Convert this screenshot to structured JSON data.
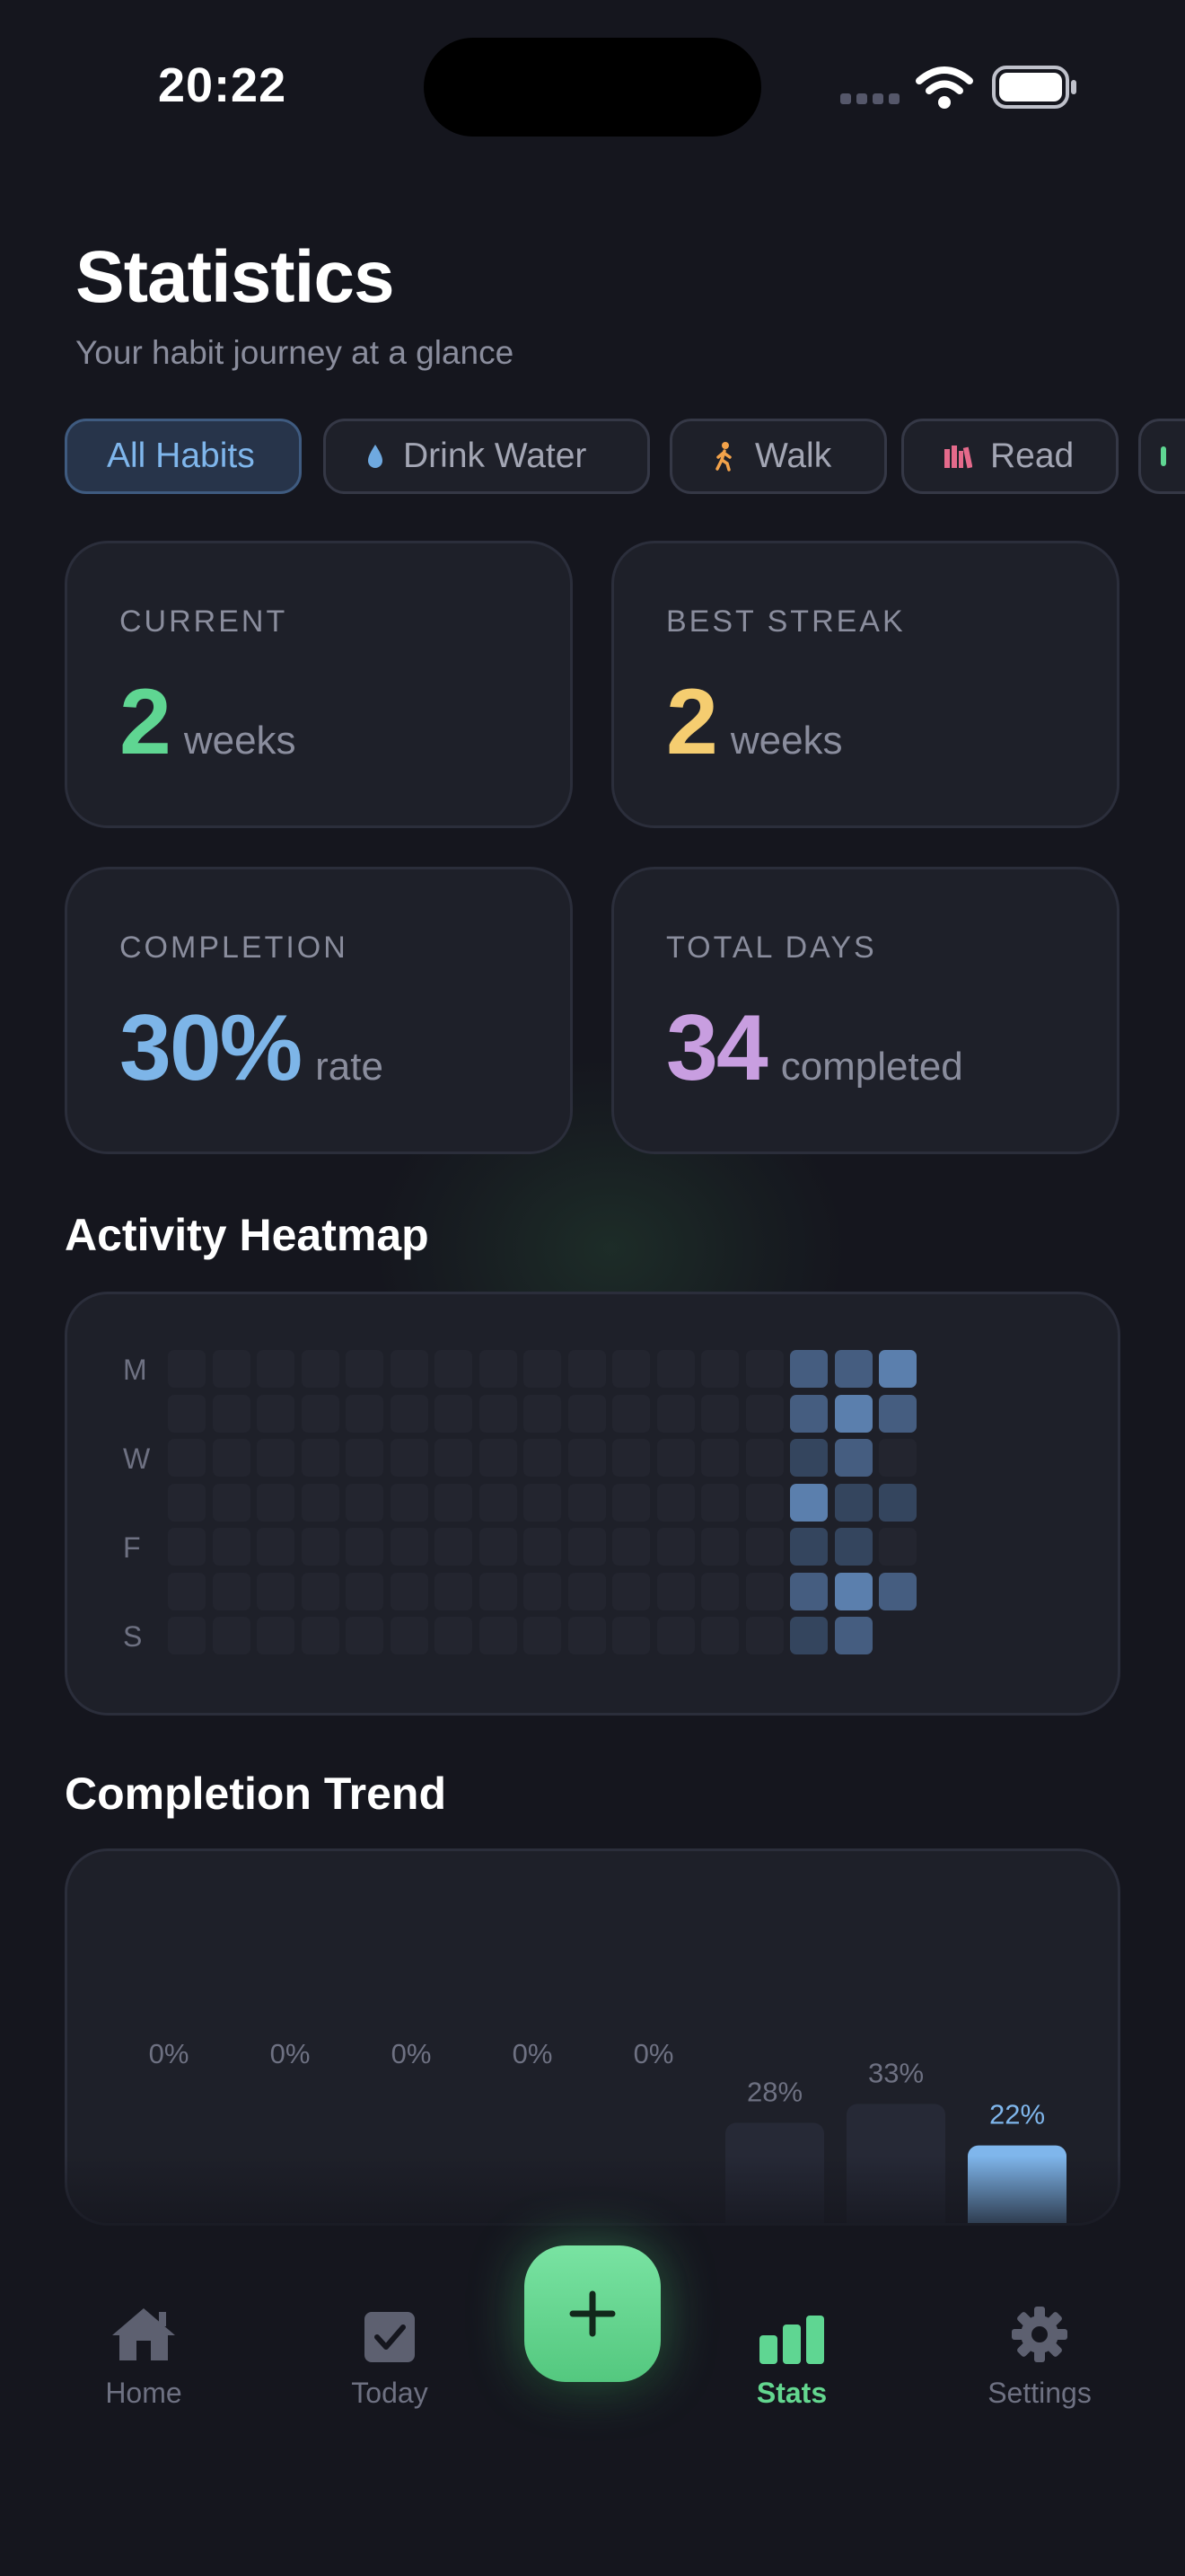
{
  "status_bar": {
    "time": "20:22",
    "wifi_icon": "wifi-icon",
    "battery_icon": "battery-icon"
  },
  "header": {
    "title": "Statistics",
    "subtitle": "Your habit journey at a glance"
  },
  "filters": [
    {
      "label": "All Habits",
      "icon": "",
      "active": true
    },
    {
      "label": "Drink Water",
      "icon": "water-drop-icon",
      "active": false
    },
    {
      "label": "Walk",
      "icon": "walking-icon",
      "active": false
    },
    {
      "label": "Read",
      "icon": "books-icon",
      "active": false
    }
  ],
  "stats": {
    "current": {
      "label": "CURRENT",
      "value": "2",
      "unit": "weeks",
      "color": "#5fd692"
    },
    "best_streak": {
      "label": "BEST STREAK",
      "value": "2",
      "unit": "weeks",
      "color": "#f5cd70"
    },
    "completion": {
      "label": "COMPLETION",
      "value": "30%",
      "unit": "rate",
      "color": "#7db5e8"
    },
    "total_days": {
      "label": "TOTAL DAYS",
      "value": "34",
      "unit": "completed",
      "color": "#c89ee0"
    }
  },
  "heatmap": {
    "title": "Activity Heatmap",
    "day_labels": [
      "M",
      "",
      "W",
      "",
      "F",
      "",
      "S"
    ],
    "levels": [
      [
        0,
        0,
        0,
        0,
        0,
        0,
        0,
        0,
        0,
        0,
        0,
        0,
        0,
        0,
        2,
        2,
        3
      ],
      [
        0,
        0,
        0,
        0,
        0,
        0,
        0,
        0,
        0,
        0,
        0,
        0,
        0,
        0,
        2,
        3,
        2
      ],
      [
        0,
        0,
        0,
        0,
        0,
        0,
        0,
        0,
        0,
        0,
        0,
        0,
        0,
        0,
        1,
        2,
        0
      ],
      [
        0,
        0,
        0,
        0,
        0,
        0,
        0,
        0,
        0,
        0,
        0,
        0,
        0,
        0,
        3,
        1,
        1
      ],
      [
        0,
        0,
        0,
        0,
        0,
        0,
        0,
        0,
        0,
        0,
        0,
        0,
        0,
        0,
        1,
        1,
        0
      ],
      [
        0,
        0,
        0,
        0,
        0,
        0,
        0,
        0,
        0,
        0,
        0,
        0,
        0,
        0,
        2,
        3,
        2
      ],
      [
        0,
        0,
        0,
        0,
        0,
        0,
        0,
        0,
        0,
        0,
        0,
        0,
        0,
        0,
        1,
        2,
        -1
      ]
    ],
    "colors": {
      "-1": "transparent",
      "0": "#23252f",
      "1": "#34455e",
      "2": "#455d80",
      "3": "#5b7fad"
    }
  },
  "trend": {
    "title": "Completion Trend",
    "bar_color": "#262936",
    "highlight_color": "#7fb6ec"
  },
  "chart_data": {
    "type": "bar",
    "categories": [
      "",
      "",
      "",
      "",
      "",
      "",
      "",
      ""
    ],
    "values": [
      0,
      0,
      0,
      0,
      0,
      28,
      33,
      22
    ],
    "value_labels": [
      "0%",
      "0%",
      "0%",
      "0%",
      "0%",
      "28%",
      "33%",
      "22%"
    ],
    "highlight_index": 7,
    "ylim": [
      0,
      100
    ],
    "grid": false,
    "legend": "none"
  },
  "tabbar": {
    "home": {
      "label": "Home",
      "icon": "house-icon"
    },
    "today": {
      "label": "Today",
      "icon": "checkbox-icon"
    },
    "add": {
      "icon": "plus-icon"
    },
    "stats": {
      "label": "Stats",
      "icon": "bar-chart-icon",
      "active": true
    },
    "settings": {
      "label": "Settings",
      "icon": "gear-icon"
    }
  }
}
